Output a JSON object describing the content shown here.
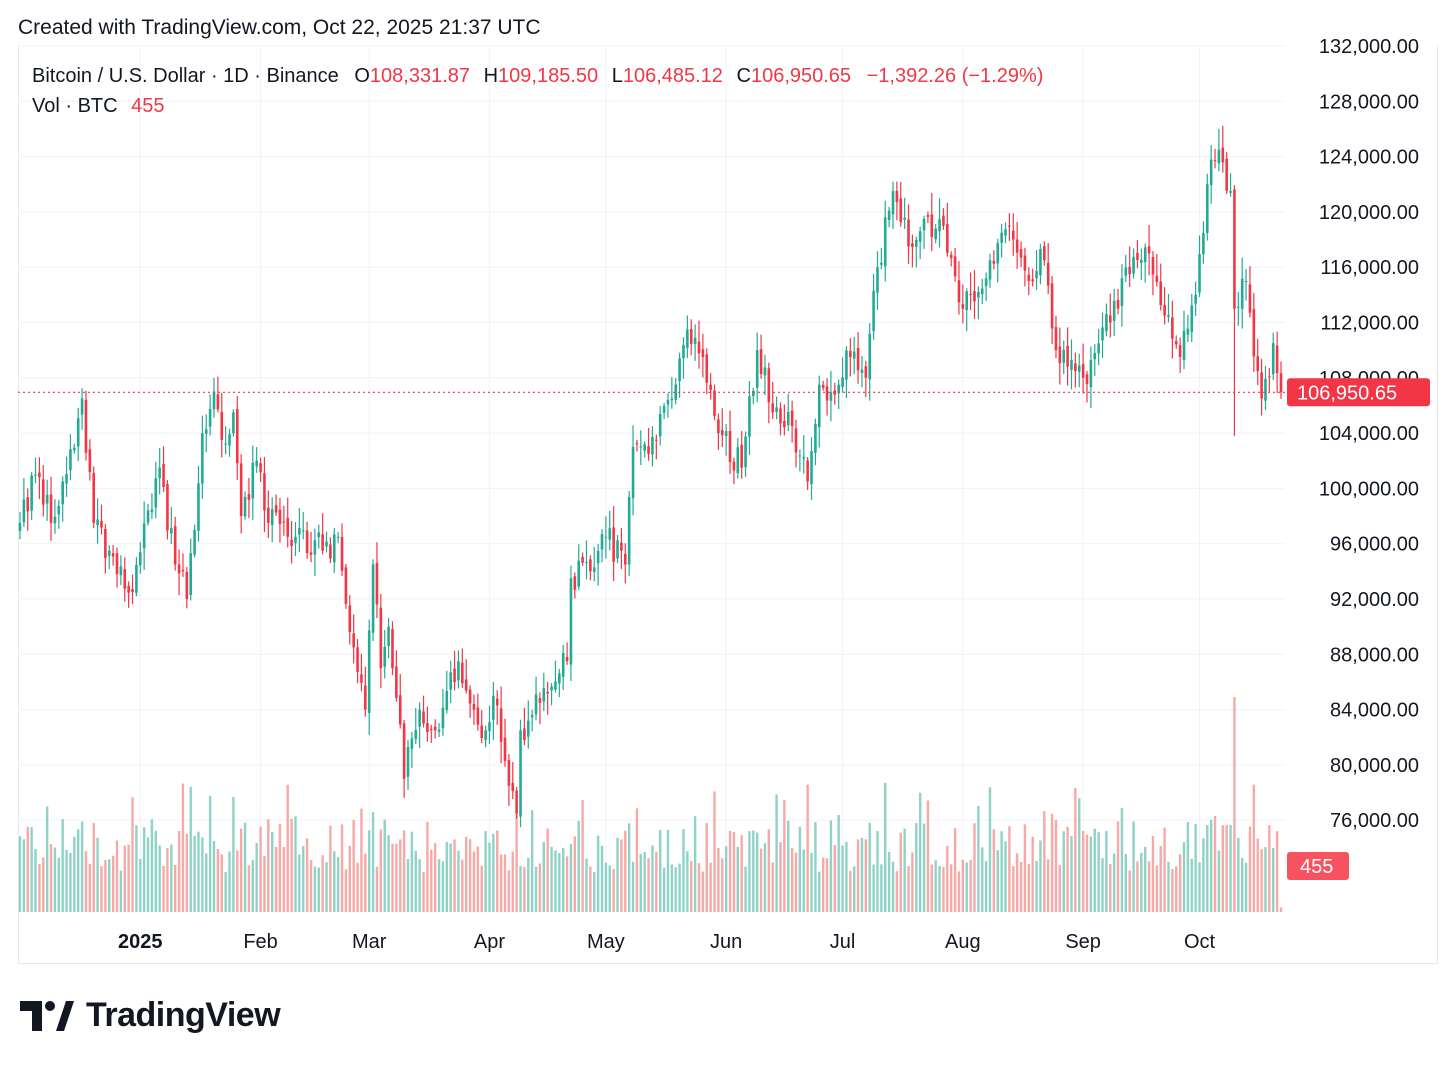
{
  "header": {
    "created_text": "Created with TradingView.com, Oct 22, 2025 21:37 UTC"
  },
  "legend": {
    "symbol": "Bitcoin / U.S. Dollar · 1D · Binance",
    "o_label": "O",
    "o_value": "108,331.87",
    "h_label": "H",
    "h_value": "109,185.50",
    "l_label": "L",
    "l_value": "106,485.12",
    "c_label": "C",
    "c_value": "106,950.65",
    "change": "−1,392.26 (−1.29%)",
    "vol_label": "Vol · BTC",
    "vol_value": "455"
  },
  "branding": {
    "name": "TradingView",
    "icon": "tradingview-logo-icon"
  },
  "colors": {
    "up": "#22ab94",
    "down": "#f23645",
    "grid": "#f0f3fa",
    "text": "#131722"
  },
  "chart_data": {
    "type": "candlestick",
    "interval": "1D",
    "x_range": [
      "2024-12-01",
      "2025-10-22"
    ],
    "ylim": [
      72000,
      132000
    ],
    "y_ticks": [
      "76,000.00",
      "80,000.00",
      "84,000.00",
      "88,000.00",
      "92,000.00",
      "96,000.00",
      "100,000.00",
      "104,000.00",
      "108,000.00",
      "112,000.00",
      "116,000.00",
      "120,000.00",
      "124,000.00",
      "128,000.00",
      "132,000.00"
    ],
    "x_ticks": [
      {
        "label": "2025",
        "date": "2025-01-01",
        "bold": true
      },
      {
        "label": "Feb",
        "date": "2025-02-01"
      },
      {
        "label": "Mar",
        "date": "2025-03-01"
      },
      {
        "label": "Apr",
        "date": "2025-04-01"
      },
      {
        "label": "May",
        "date": "2025-05-01"
      },
      {
        "label": "Jun",
        "date": "2025-06-01"
      },
      {
        "label": "Jul",
        "date": "2025-07-01"
      },
      {
        "label": "Aug",
        "date": "2025-08-01"
      },
      {
        "label": "Sep",
        "date": "2025-09-01"
      },
      {
        "label": "Oct",
        "date": "2025-10-01"
      }
    ],
    "last_price": 106950.65,
    "last_price_label": "106,950.65",
    "last_volume_label": "455",
    "series": [
      {
        "name": "Bitcoin / U.S. Dollar",
        "type": "candlestick",
        "anchor_closes": [
          [
            "2024-12-01",
            97500
          ],
          [
            "2024-12-05",
            101000
          ],
          [
            "2024-12-09",
            97500
          ],
          [
            "2024-12-12",
            100500
          ],
          [
            "2024-12-17",
            106500
          ],
          [
            "2024-12-20",
            97500
          ],
          [
            "2024-12-24",
            95500
          ],
          [
            "2024-12-30",
            92500
          ],
          [
            "2025-01-06",
            101500
          ],
          [
            "2025-01-10",
            94500
          ],
          [
            "2025-01-13",
            92000
          ],
          [
            "2025-01-17",
            104000
          ],
          [
            "2025-01-20",
            107000
          ],
          [
            "2025-01-22",
            103500
          ],
          [
            "2025-01-25",
            105500
          ],
          [
            "2025-01-27",
            98000
          ],
          [
            "2025-01-31",
            102000
          ],
          [
            "2025-02-03",
            97500
          ],
          [
            "2025-02-10",
            96500
          ],
          [
            "2025-02-17",
            95500
          ],
          [
            "2025-02-21",
            96500
          ],
          [
            "2025-02-25",
            88500
          ],
          [
            "2025-02-28",
            84000
          ],
          [
            "2025-03-02",
            94500
          ],
          [
            "2025-03-04",
            87000
          ],
          [
            "2025-03-06",
            90000
          ],
          [
            "2025-03-10",
            79000
          ],
          [
            "2025-03-14",
            84000
          ],
          [
            "2025-03-18",
            82500
          ],
          [
            "2025-03-24",
            87500
          ],
          [
            "2025-03-28",
            84000
          ],
          [
            "2025-03-31",
            82500
          ],
          [
            "2025-04-02",
            85000
          ],
          [
            "2025-04-06",
            78500
          ],
          [
            "2025-04-08",
            76500
          ],
          [
            "2025-04-09",
            82500
          ],
          [
            "2025-04-14",
            84500
          ],
          [
            "2025-04-21",
            87500
          ],
          [
            "2025-04-22",
            93500
          ],
          [
            "2025-04-27",
            94000
          ],
          [
            "2025-05-01",
            96500
          ],
          [
            "2025-05-06",
            94500
          ],
          [
            "2025-05-08",
            103000
          ],
          [
            "2025-05-12",
            102500
          ],
          [
            "2025-05-18",
            106500
          ],
          [
            "2025-05-22",
            111500
          ],
          [
            "2025-05-26",
            109500
          ],
          [
            "2025-05-30",
            104000
          ],
          [
            "2025-06-05",
            101500
          ],
          [
            "2025-06-09",
            110000
          ],
          [
            "2025-06-13",
            105500
          ],
          [
            "2025-06-18",
            104500
          ],
          [
            "2025-06-22",
            100500
          ],
          [
            "2025-06-25",
            107500
          ],
          [
            "2025-06-30",
            107500
          ],
          [
            "2025-07-03",
            109500
          ],
          [
            "2025-07-07",
            108000
          ],
          [
            "2025-07-10",
            116000
          ],
          [
            "2025-07-14",
            121500
          ],
          [
            "2025-07-18",
            117500
          ],
          [
            "2025-07-22",
            119500
          ],
          [
            "2025-07-27",
            119000
          ],
          [
            "2025-08-01",
            113000
          ],
          [
            "2025-08-03",
            114000
          ],
          [
            "2025-08-08",
            116500
          ],
          [
            "2025-08-11",
            118500
          ],
          [
            "2025-08-14",
            118000
          ],
          [
            "2025-08-18",
            115000
          ],
          [
            "2025-08-22",
            116500
          ],
          [
            "2025-08-25",
            110000
          ],
          [
            "2025-08-30",
            108500
          ],
          [
            "2025-09-01",
            108000
          ],
          [
            "2025-09-05",
            110500
          ],
          [
            "2025-09-08",
            112000
          ],
          [
            "2025-09-13",
            115500
          ],
          [
            "2025-09-18",
            117000
          ],
          [
            "2025-09-22",
            112500
          ],
          [
            "2025-09-26",
            109500
          ],
          [
            "2025-09-30",
            114000
          ],
          [
            "2025-10-03",
            122000
          ],
          [
            "2025-10-06",
            124500
          ],
          [
            "2025-10-09",
            121500
          ],
          [
            "2025-10-10",
            113000
          ],
          [
            "2025-10-13",
            115000
          ],
          [
            "2025-10-16",
            108500
          ],
          [
            "2025-10-17",
            106500
          ],
          [
            "2025-10-20",
            110500
          ],
          [
            "2025-10-21",
            108331.87
          ],
          [
            "2025-10-22",
            106950.65
          ]
        ]
      },
      {
        "name": "Vol · BTC",
        "type": "volume",
        "range_btc": [
          0,
          22000
        ],
        "spike_date": "2025-10-10"
      }
    ]
  }
}
